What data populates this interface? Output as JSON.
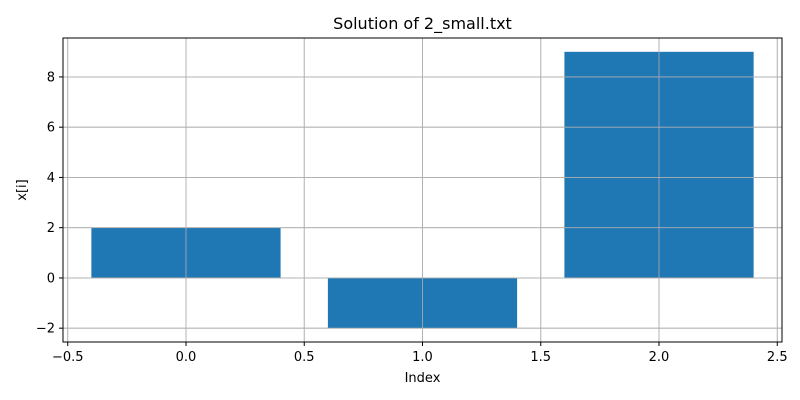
{
  "chart_data": {
    "type": "bar",
    "title": "Solution of 2_small.txt",
    "xlabel": "Index",
    "ylabel": "x[i]",
    "x": [
      0,
      1,
      2
    ],
    "values": [
      2,
      -2,
      9
    ],
    "bar_width": 0.8,
    "bar_color": "#1f77b4",
    "xlim": [
      -0.52,
      2.52
    ],
    "ylim": [
      -2.55,
      9.55
    ],
    "xticks": [
      -0.5,
      0.0,
      0.5,
      1.0,
      1.5,
      2.0,
      2.5
    ],
    "xtick_labels": [
      "−0.5",
      "0.0",
      "0.5",
      "1.0",
      "1.5",
      "2.0",
      "2.5"
    ],
    "yticks": [
      -2,
      0,
      2,
      4,
      6,
      8
    ],
    "ytick_labels": [
      "−2",
      "0",
      "2",
      "4",
      "6",
      "8"
    ],
    "grid": true,
    "grid_color": "#b0b0b0"
  }
}
